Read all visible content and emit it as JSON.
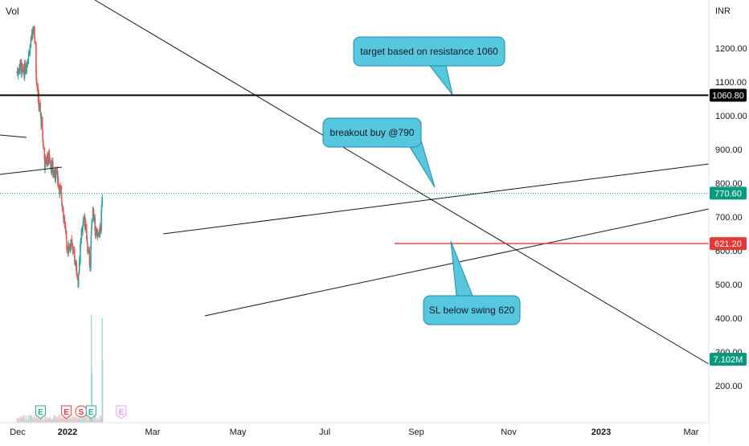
{
  "header": {
    "volume_label": "Vol"
  },
  "chart_data": {
    "type": "candlestick",
    "currency": "INR",
    "ylim": [
      110,
      1320
    ],
    "y_ticks": [
      "1200.00",
      "1100.00",
      "1000.00",
      "900.00",
      "800.00",
      "700.00",
      "600.00",
      "500.00",
      "400.00",
      "300.00",
      "200.00"
    ],
    "x_ticks": [
      "Dec",
      "2022",
      "Mar",
      "May",
      "Jul",
      "Sep",
      "Nov",
      "2023",
      "Mar"
    ],
    "price_path": [
      [
        "2021-11-29",
        1130
      ],
      [
        "2021-12-10",
        1150
      ],
      [
        "2021-12-20",
        1120
      ],
      [
        "2022-01-01",
        1160
      ],
      [
        "2022-01-15",
        1220
      ],
      [
        "2022-01-25",
        1260
      ],
      [
        "2022-02-01",
        1120
      ],
      [
        "2022-02-10",
        1030
      ],
      [
        "2022-02-18",
        980
      ],
      [
        "2022-03-01",
        860
      ],
      [
        "2022-03-15",
        880
      ],
      [
        "2022-04-01",
        820
      ],
      [
        "2022-04-10",
        830
      ],
      [
        "2022-04-25",
        760
      ],
      [
        "2022-05-05",
        690
      ],
      [
        "2022-05-15",
        600
      ],
      [
        "2022-05-25",
        620
      ],
      [
        "2022-06-05",
        600
      ],
      [
        "2022-06-20",
        510
      ],
      [
        "2022-06-30",
        640
      ],
      [
        "2022-07-10",
        700
      ],
      [
        "2022-07-20",
        620
      ],
      [
        "2022-07-30",
        560
      ],
      [
        "2022-08-06",
        730
      ],
      [
        "2022-08-15",
        660
      ],
      [
        "2022-08-25",
        640
      ],
      [
        "2022-09-01",
        660
      ],
      [
        "2022-09-05",
        700
      ],
      [
        "2022-09-08",
        770.6
      ]
    ],
    "volume_spikes": [
      [
        "2022-08-03",
        410
      ],
      [
        "2022-08-05",
        240
      ],
      [
        "2022-09-08",
        400
      ],
      [
        "2022-09-09",
        280
      ]
    ],
    "horizontal_levels": [
      {
        "price": 1060.8,
        "label": "1060.80",
        "color": "#000000"
      },
      {
        "price": 621.2,
        "label": "621.20",
        "color": "#e53935"
      }
    ],
    "last_price": {
      "price": 770.6,
      "label": "770.60",
      "color": "#089981"
    },
    "volume_badge": {
      "label": "7.102M",
      "color": "#089981"
    },
    "event_markers": [
      {
        "letter": "E",
        "date": "2022-02-15",
        "type": "earnings-past"
      },
      {
        "letter": "E",
        "date": "2022-05-12",
        "type": "earnings-past"
      },
      {
        "letter": "S",
        "date": "2022-06-30",
        "type": "split"
      },
      {
        "letter": "E",
        "date": "2022-08-02",
        "type": "earnings-past"
      },
      {
        "letter": "E",
        "date": "2022-11-10",
        "type": "earnings-future"
      }
    ],
    "annotations": [
      {
        "text": "target based on resistance 1060"
      },
      {
        "text": "breakout buy @790"
      },
      {
        "text": "SL below swing 620"
      }
    ],
    "colors": {
      "up": "#26a69a",
      "down": "#ef5350",
      "callout_fill": "#55c8e0",
      "callout_border": "#1f8da6"
    }
  }
}
